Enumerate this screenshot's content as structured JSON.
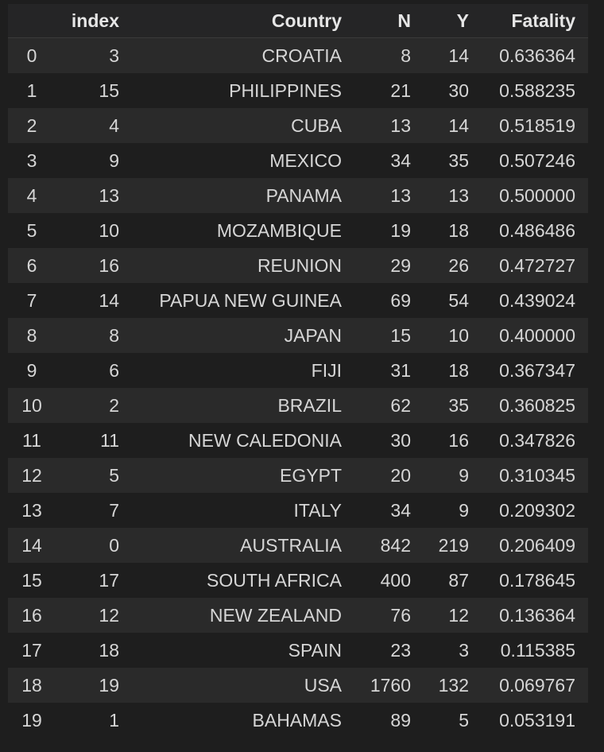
{
  "table": {
    "columns": [
      "",
      "index",
      "Country",
      "N",
      "Y",
      "Fatality"
    ],
    "rows": [
      {
        "label": "0",
        "index": "3",
        "country": "CROATIA",
        "n": "8",
        "y": "14",
        "fatality": "0.636364"
      },
      {
        "label": "1",
        "index": "15",
        "country": "PHILIPPINES",
        "n": "21",
        "y": "30",
        "fatality": "0.588235"
      },
      {
        "label": "2",
        "index": "4",
        "country": "CUBA",
        "n": "13",
        "y": "14",
        "fatality": "0.518519"
      },
      {
        "label": "3",
        "index": "9",
        "country": "MEXICO",
        "n": "34",
        "y": "35",
        "fatality": "0.507246"
      },
      {
        "label": "4",
        "index": "13",
        "country": "PANAMA",
        "n": "13",
        "y": "13",
        "fatality": "0.500000"
      },
      {
        "label": "5",
        "index": "10",
        "country": "MOZAMBIQUE",
        "n": "19",
        "y": "18",
        "fatality": "0.486486"
      },
      {
        "label": "6",
        "index": "16",
        "country": "REUNION",
        "n": "29",
        "y": "26",
        "fatality": "0.472727"
      },
      {
        "label": "7",
        "index": "14",
        "country": "PAPUA NEW GUINEA",
        "n": "69",
        "y": "54",
        "fatality": "0.439024"
      },
      {
        "label": "8",
        "index": "8",
        "country": "JAPAN",
        "n": "15",
        "y": "10",
        "fatality": "0.400000"
      },
      {
        "label": "9",
        "index": "6",
        "country": "FIJI",
        "n": "31",
        "y": "18",
        "fatality": "0.367347"
      },
      {
        "label": "10",
        "index": "2",
        "country": "BRAZIL",
        "n": "62",
        "y": "35",
        "fatality": "0.360825"
      },
      {
        "label": "11",
        "index": "11",
        "country": "NEW CALEDONIA",
        "n": "30",
        "y": "16",
        "fatality": "0.347826"
      },
      {
        "label": "12",
        "index": "5",
        "country": "EGYPT",
        "n": "20",
        "y": "9",
        "fatality": "0.310345"
      },
      {
        "label": "13",
        "index": "7",
        "country": "ITALY",
        "n": "34",
        "y": "9",
        "fatality": "0.209302"
      },
      {
        "label": "14",
        "index": "0",
        "country": "AUSTRALIA",
        "n": "842",
        "y": "219",
        "fatality": "0.206409"
      },
      {
        "label": "15",
        "index": "17",
        "country": "SOUTH AFRICA",
        "n": "400",
        "y": "87",
        "fatality": "0.178645"
      },
      {
        "label": "16",
        "index": "12",
        "country": "NEW ZEALAND",
        "n": "76",
        "y": "12",
        "fatality": "0.136364"
      },
      {
        "label": "17",
        "index": "18",
        "country": "SPAIN",
        "n": "23",
        "y": "3",
        "fatality": "0.115385"
      },
      {
        "label": "18",
        "index": "19",
        "country": "USA",
        "n": "1760",
        "y": "132",
        "fatality": "0.069767"
      },
      {
        "label": "19",
        "index": "1",
        "country": "BAHAMAS",
        "n": "89",
        "y": "5",
        "fatality": "0.053191"
      }
    ]
  }
}
